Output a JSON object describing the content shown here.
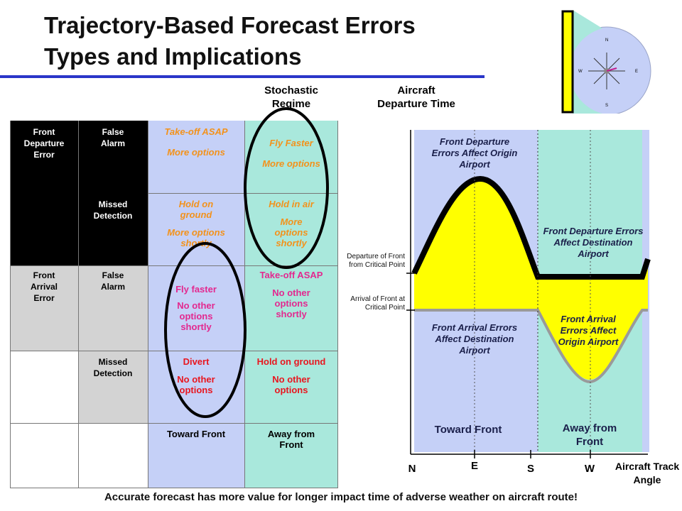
{
  "title_line1": "Trajectory-Based Forecast Errors",
  "title_line2": "Types and Implications",
  "compass": {
    "n": "N",
    "e": "E",
    "s": "S",
    "w": "W"
  },
  "headers": {
    "stochastic": "Stochastic Regime",
    "departure_time": "Aircraft Departure Time"
  },
  "table": {
    "front_departure_error": "Front Departure Error",
    "front_arrival_error": "Front Arrival Error",
    "false_alarm_1": "False Alarm",
    "missed_detection_1": "Missed Detection",
    "false_alarm_2": "False Alarm",
    "missed_detection_2": "Missed Detection",
    "r1c1_a": "Take-off ASAP",
    "r1c1_b": "More options",
    "r1c2_a": "Fly Faster",
    "r1c2_b": "More options",
    "r2c1_a": "Hold on ground",
    "r2c1_b": "More options shortly",
    "r2c2_a": "Hold in air",
    "r2c2_b": "More options shortly",
    "r3c1_a": "Fly faster",
    "r3c1_b": "No other options shortly",
    "r3c2_a": "Take-off ASAP",
    "r3c2_b": "No other options shortly",
    "r4c1_a": "Divert",
    "r4c1_b": "No other options",
    "r4c2_a": "Hold on ground",
    "r4c2_b": "No other options",
    "col_toward": "Toward Front",
    "col_away": "Away from Front"
  },
  "diagram": {
    "fd_origin": "Front Departure Errors Affect Origin Airport",
    "fd_dest": "Front Departure Errors Affect Destination Airport",
    "fa_dest": "Front Arrival Errors Affect Destination Airport",
    "fa_origin": "Front Arrival Errors Affect Origin Airport",
    "toward_front": "Toward Front",
    "away_front": "Away from Front",
    "y_departure": "Departure of Front from Critical Point",
    "y_arrival": "Arrival of Front at Critical Point",
    "x_n": "N",
    "x_e": "E",
    "x_s": "S",
    "x_w": "W",
    "x_axis_label": "Aircraft Track Angle"
  },
  "footer": "Accurate forecast has more value for longer impact time of adverse weather on aircraft route!",
  "colors": {
    "title_rule": "#2a36c9",
    "blue_region": "#c5d0f7",
    "green_region": "#a9e8dc",
    "yellow_region": "#ffff00"
  }
}
